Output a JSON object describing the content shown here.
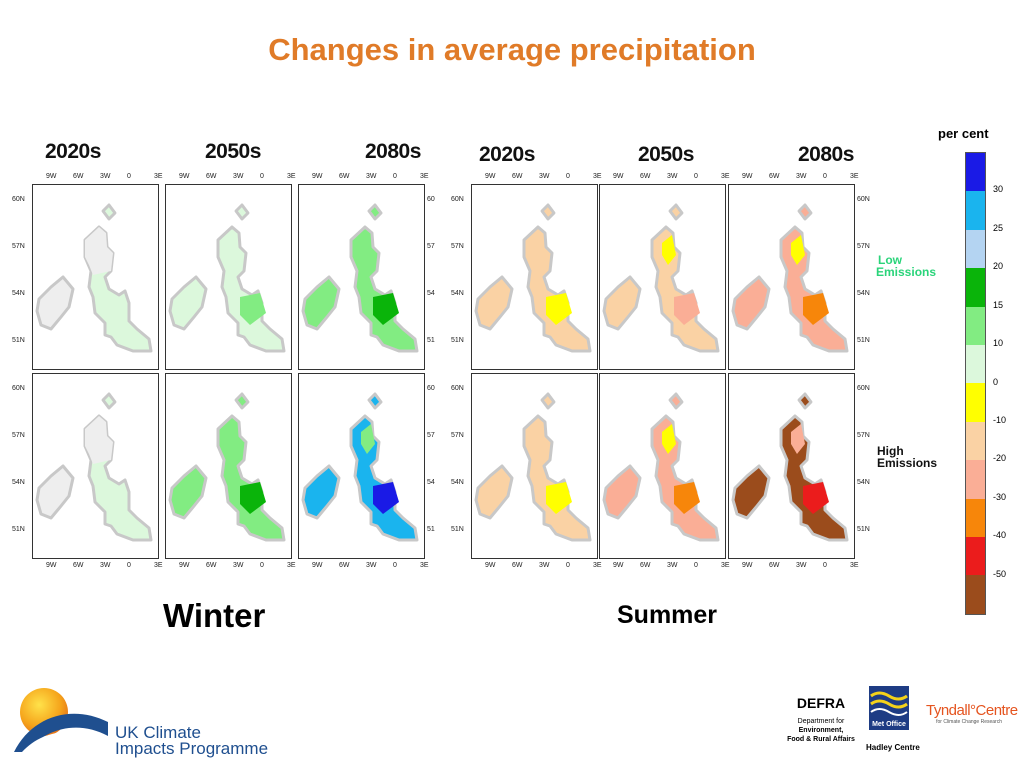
{
  "title": "Changes in average precipitation",
  "periods": [
    "2020s",
    "2050s",
    "2080s"
  ],
  "seasons": {
    "winter": "Winter",
    "summer": "Summer"
  },
  "axes": {
    "lon": [
      "9W",
      "6W",
      "3W",
      "0",
      "3E"
    ],
    "lat": [
      "60N",
      "57N",
      "54N",
      "51N"
    ],
    "lat_right_cut": [
      "60",
      "57",
      "54",
      "51"
    ]
  },
  "emissions": {
    "low": [
      "Low",
      "Emissions"
    ],
    "high": [
      "High",
      "Emissions"
    ]
  },
  "legend": {
    "title": "per cent",
    "ticks": [
      "30",
      "25",
      "20",
      "15",
      "10",
      "0",
      "-10",
      "-20",
      "-30",
      "-40",
      "-50"
    ],
    "colors": [
      "#1a1ae6",
      "#1ab4ee",
      "#b4d4f2",
      "#0ab40a",
      "#82ec82",
      "#dcf8dc",
      "#ffff00",
      "#fad2a4",
      "#faae96",
      "#f7860a",
      "#eb1c1c",
      "#9b4c1c"
    ]
  },
  "map_colors": {
    "no_change": "#eeeeee",
    "outline": "#c8c8c8"
  },
  "panels": [
    {
      "season": "winter",
      "emissions": "low",
      "period": "2020s",
      "base": "#dcf8dc",
      "patches": []
    },
    {
      "season": "winter",
      "emissions": "low",
      "period": "2050s",
      "base": "#dcf8dc",
      "patches": [
        "#82ec82"
      ]
    },
    {
      "season": "winter",
      "emissions": "low",
      "period": "2080s",
      "base": "#82ec82",
      "patches": [
        "#0ab40a"
      ]
    },
    {
      "season": "summer",
      "emissions": "low",
      "period": "2020s",
      "base": "#fad2a4",
      "patches": [
        "#ffff00"
      ]
    },
    {
      "season": "summer",
      "emissions": "low",
      "period": "2050s",
      "base": "#fad2a4",
      "patches": [
        "#faae96",
        "#ffff00"
      ]
    },
    {
      "season": "summer",
      "emissions": "low",
      "period": "2080s",
      "base": "#faae96",
      "patches": [
        "#f7860a",
        "#ffff00"
      ]
    },
    {
      "season": "winter",
      "emissions": "high",
      "period": "2020s",
      "base": "#dcf8dc",
      "patches": []
    },
    {
      "season": "winter",
      "emissions": "high",
      "period": "2050s",
      "base": "#82ec82",
      "patches": [
        "#0ab40a"
      ]
    },
    {
      "season": "winter",
      "emissions": "high",
      "period": "2080s",
      "base": "#1ab4ee",
      "patches": [
        "#1a1ae6",
        "#82ec82"
      ]
    },
    {
      "season": "summer",
      "emissions": "high",
      "period": "2020s",
      "base": "#fad2a4",
      "patches": [
        "#ffff00"
      ]
    },
    {
      "season": "summer",
      "emissions": "high",
      "period": "2050s",
      "base": "#faae96",
      "patches": [
        "#f7860a",
        "#ffff00"
      ]
    },
    {
      "season": "summer",
      "emissions": "high",
      "period": "2080s",
      "base": "#9b4c1c",
      "patches": [
        "#eb1c1c",
        "#faae96"
      ]
    }
  ],
  "logos": {
    "ukcip": [
      "UK Climate",
      "Impacts Programme"
    ],
    "defra": [
      "DEFRA",
      "Department for",
      "Environment,",
      "Food & Rural Affairs"
    ],
    "metoffice": [
      "Met Office",
      "Hadley Centre"
    ],
    "tyndall": [
      "Tyndall°Centre",
      "for Climate Change Research"
    ]
  }
}
